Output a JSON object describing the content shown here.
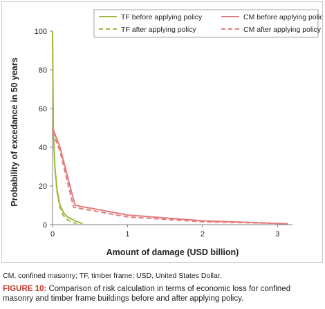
{
  "chart_data": {
    "type": "line",
    "title": "",
    "xlabel": "Amount of damage (USD billion)",
    "ylabel": "Probability of excedance in 50 years",
    "xlim": [
      0,
      3.2
    ],
    "ylim": [
      0,
      100
    ],
    "xticks": [
      0,
      1,
      2,
      3
    ],
    "yticks": [
      0,
      20,
      40,
      60,
      80,
      100
    ],
    "grid": false,
    "legend_position": "top-right",
    "series": [
      {
        "name": "TF before applying policy",
        "color": "#9bbb3f",
        "dash": "solid",
        "x": [
          0.0,
          0.01,
          0.03,
          0.06,
          0.1,
          0.15,
          0.2,
          0.3,
          0.4
        ],
        "y": [
          100,
          50,
          30,
          18,
          10,
          6,
          4,
          2,
          0.5
        ]
      },
      {
        "name": "TF after applying policy",
        "color": "#9bbb3f",
        "dash": "dashed",
        "x": [
          0.0,
          0.01,
          0.03,
          0.06,
          0.1,
          0.14,
          0.18,
          0.25,
          0.32
        ],
        "y": [
          100,
          50,
          30,
          17,
          9,
          5,
          3,
          1.5,
          0.5
        ]
      },
      {
        "name": "CM before applying policy",
        "color": "#e57b7b",
        "dash": "solid",
        "x": [
          0.0,
          0.1,
          0.3,
          1.0,
          2.0,
          3.1
        ],
        "y": [
          50,
          40,
          10,
          5,
          2,
          0.5
        ]
      },
      {
        "name": "CM after applying policy",
        "color": "#e57b7b",
        "dash": "dashed",
        "x": [
          0.0,
          0.1,
          0.28,
          1.0,
          2.0,
          3.15
        ],
        "y": [
          48,
          38,
          9,
          4,
          1.5,
          0.5
        ]
      }
    ]
  },
  "footnote": "CM, confined masonry; TF, timber frame; USD, United States Dollar.",
  "caption": {
    "label": "FIGURE 10:",
    "text": " Comparison of risk calculation in terms of economic loss for confined masonry and timber frame buildings before and after applying policy."
  }
}
